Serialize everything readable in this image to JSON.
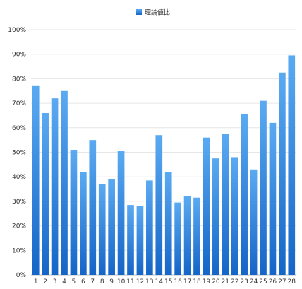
{
  "chart_data": {
    "type": "bar",
    "title": "",
    "xlabel": "",
    "ylabel": "",
    "categories": [
      "1",
      "2",
      "3",
      "4",
      "5",
      "6",
      "7",
      "8",
      "9",
      "10",
      "11",
      "12",
      "13",
      "14",
      "15",
      "16",
      "17",
      "18",
      "19",
      "20",
      "21",
      "22",
      "23",
      "24",
      "25",
      "26",
      "27",
      "28"
    ],
    "series": [
      {
        "name": "理論値比",
        "values": [
          0.77,
          0.66,
          0.72,
          0.75,
          0.51,
          0.42,
          0.55,
          0.37,
          0.39,
          0.505,
          0.285,
          0.28,
          0.385,
          0.57,
          0.42,
          0.295,
          0.32,
          0.315,
          0.56,
          0.475,
          0.575,
          0.48,
          0.655,
          0.43,
          0.71,
          0.62,
          0.825,
          0.895
        ]
      }
    ],
    "ylim": [
      0,
      1
    ],
    "yticks": [
      "0%",
      "10%",
      "20%",
      "30%",
      "40%",
      "50%",
      "60%",
      "70%",
      "80%",
      "90%",
      "100%"
    ],
    "grid": true,
    "legend_position": "top-center",
    "colors": {
      "bar_top": "#5aaaf2",
      "bar_bottom": "#1565c8",
      "grid": "#e6e6e6"
    }
  }
}
